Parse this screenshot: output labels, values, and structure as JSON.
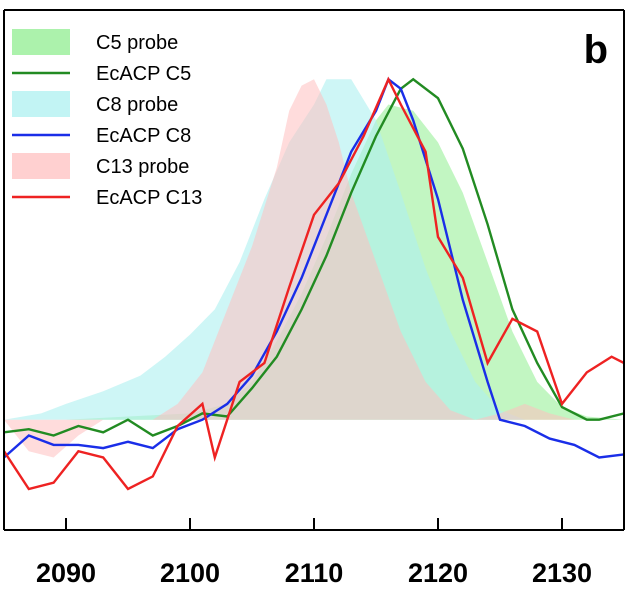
{
  "chart_data": {
    "type": "area",
    "panel_label": "b",
    "xlabel": "",
    "ylabel": "",
    "xlim": [
      2085,
      2135
    ],
    "ylim": [
      -0.35,
      1.3
    ],
    "x_ticks": [
      2090,
      2100,
      2110,
      2120,
      2130
    ],
    "legend_position": "top-left",
    "grid": false,
    "series": [
      {
        "name": "C5 probe",
        "kind": "area",
        "color": "#90ee90",
        "opacity": 0.55,
        "points": [
          [
            2085,
            0.0
          ],
          [
            2090,
            0.0
          ],
          [
            2095,
            0.01
          ],
          [
            2100,
            0.02
          ],
          [
            2103,
            0.05
          ],
          [
            2105,
            0.12
          ],
          [
            2107,
            0.25
          ],
          [
            2109,
            0.4
          ],
          [
            2111,
            0.58
          ],
          [
            2113,
            0.78
          ],
          [
            2115,
            0.95
          ],
          [
            2116,
            1.0
          ],
          [
            2118,
            0.98
          ],
          [
            2120,
            0.88
          ],
          [
            2122,
            0.72
          ],
          [
            2124,
            0.5
          ],
          [
            2126,
            0.28
          ],
          [
            2128,
            0.12
          ],
          [
            2130,
            0.04
          ],
          [
            2132,
            0.01
          ],
          [
            2135,
            0.0
          ]
        ]
      },
      {
        "name": "EcACP C5",
        "kind": "line",
        "color": "#228b22",
        "points": [
          [
            2085,
            -0.04
          ],
          [
            2087,
            -0.03
          ],
          [
            2089,
            -0.05
          ],
          [
            2091,
            -0.02
          ],
          [
            2093,
            -0.04
          ],
          [
            2095,
            0.0
          ],
          [
            2097,
            -0.05
          ],
          [
            2099,
            -0.02
          ],
          [
            2101,
            0.02
          ],
          [
            2103,
            0.01
          ],
          [
            2105,
            0.1
          ],
          [
            2107,
            0.2
          ],
          [
            2109,
            0.35
          ],
          [
            2111,
            0.52
          ],
          [
            2113,
            0.72
          ],
          [
            2115,
            0.9
          ],
          [
            2117,
            1.05
          ],
          [
            2118,
            1.08
          ],
          [
            2120,
            1.02
          ],
          [
            2122,
            0.86
          ],
          [
            2124,
            0.62
          ],
          [
            2126,
            0.35
          ],
          [
            2128,
            0.18
          ],
          [
            2130,
            0.04
          ],
          [
            2132,
            0.0
          ],
          [
            2133,
            0.0
          ],
          [
            2135,
            0.02
          ]
        ]
      },
      {
        "name": "C8 probe",
        "kind": "area",
        "color": "#aef0f0",
        "opacity": 0.6,
        "points": [
          [
            2085,
            0.0
          ],
          [
            2088,
            0.02
          ],
          [
            2090,
            0.05
          ],
          [
            2093,
            0.09
          ],
          [
            2096,
            0.14
          ],
          [
            2098,
            0.2
          ],
          [
            2100,
            0.27
          ],
          [
            2102,
            0.35
          ],
          [
            2104,
            0.5
          ],
          [
            2106,
            0.7
          ],
          [
            2108,
            0.88
          ],
          [
            2110,
            1.0
          ],
          [
            2111,
            1.08
          ],
          [
            2113,
            1.08
          ],
          [
            2115,
            0.95
          ],
          [
            2117,
            0.72
          ],
          [
            2119,
            0.48
          ],
          [
            2121,
            0.28
          ],
          [
            2123,
            0.12
          ],
          [
            2125,
            0.03
          ],
          [
            2127,
            0.0
          ],
          [
            2135,
            0.0
          ]
        ]
      },
      {
        "name": "EcACP C8",
        "kind": "line",
        "color": "#1a2ee8",
        "points": [
          [
            2085,
            -0.12
          ],
          [
            2087,
            -0.05
          ],
          [
            2089,
            -0.08
          ],
          [
            2091,
            -0.08
          ],
          [
            2093,
            -0.09
          ],
          [
            2095,
            -0.07
          ],
          [
            2097,
            -0.09
          ],
          [
            2099,
            -0.03
          ],
          [
            2101,
            0.0
          ],
          [
            2103,
            0.05
          ],
          [
            2105,
            0.14
          ],
          [
            2107,
            0.28
          ],
          [
            2109,
            0.45
          ],
          [
            2111,
            0.65
          ],
          [
            2113,
            0.85
          ],
          [
            2115,
            0.98
          ],
          [
            2116,
            1.08
          ],
          [
            2117,
            1.05
          ],
          [
            2118,
            0.95
          ],
          [
            2120,
            0.7
          ],
          [
            2122,
            0.38
          ],
          [
            2124,
            0.12
          ],
          [
            2125,
            0.0
          ],
          [
            2127,
            -0.02
          ],
          [
            2129,
            -0.06
          ],
          [
            2131,
            -0.08
          ],
          [
            2133,
            -0.12
          ],
          [
            2135,
            -0.11
          ]
        ]
      },
      {
        "name": "C13 probe",
        "kind": "area",
        "color": "#ffc0c0",
        "opacity": 0.55,
        "points": [
          [
            2085,
            0.0
          ],
          [
            2087,
            -0.1
          ],
          [
            2089,
            -0.12
          ],
          [
            2091,
            -0.05
          ],
          [
            2093,
            0.0
          ],
          [
            2095,
            0.0
          ],
          [
            2097,
            0.0
          ],
          [
            2099,
            0.05
          ],
          [
            2101,
            0.15
          ],
          [
            2103,
            0.35
          ],
          [
            2105,
            0.55
          ],
          [
            2107,
            0.8
          ],
          [
            2108,
            0.98
          ],
          [
            2109,
            1.06
          ],
          [
            2110,
            1.08
          ],
          [
            2111,
            1.0
          ],
          [
            2112,
            0.88
          ],
          [
            2113,
            0.72
          ],
          [
            2115,
            0.5
          ],
          [
            2117,
            0.28
          ],
          [
            2119,
            0.12
          ],
          [
            2121,
            0.03
          ],
          [
            2123,
            0.0
          ],
          [
            2125,
            0.02
          ],
          [
            2127,
            0.05
          ],
          [
            2129,
            0.02
          ],
          [
            2131,
            0.0
          ],
          [
            2135,
            0.0
          ]
        ]
      },
      {
        "name": "EcACP C13",
        "kind": "line",
        "color": "#ee2222",
        "points": [
          [
            2085,
            -0.1
          ],
          [
            2087,
            -0.22
          ],
          [
            2089,
            -0.2
          ],
          [
            2091,
            -0.1
          ],
          [
            2093,
            -0.12
          ],
          [
            2095,
            -0.22
          ],
          [
            2097,
            -0.18
          ],
          [
            2099,
            -0.02
          ],
          [
            2101,
            0.05
          ],
          [
            2102,
            -0.12
          ],
          [
            2104,
            0.12
          ],
          [
            2106,
            0.18
          ],
          [
            2108,
            0.42
          ],
          [
            2110,
            0.65
          ],
          [
            2112,
            0.75
          ],
          [
            2114,
            0.9
          ],
          [
            2116,
            1.08
          ],
          [
            2117,
            1.0
          ],
          [
            2119,
            0.85
          ],
          [
            2120,
            0.58
          ],
          [
            2122,
            0.45
          ],
          [
            2124,
            0.18
          ],
          [
            2126,
            0.32
          ],
          [
            2128,
            0.28
          ],
          [
            2130,
            0.05
          ],
          [
            2132,
            0.15
          ],
          [
            2134,
            0.2
          ],
          [
            2135,
            0.18
          ]
        ]
      }
    ]
  }
}
